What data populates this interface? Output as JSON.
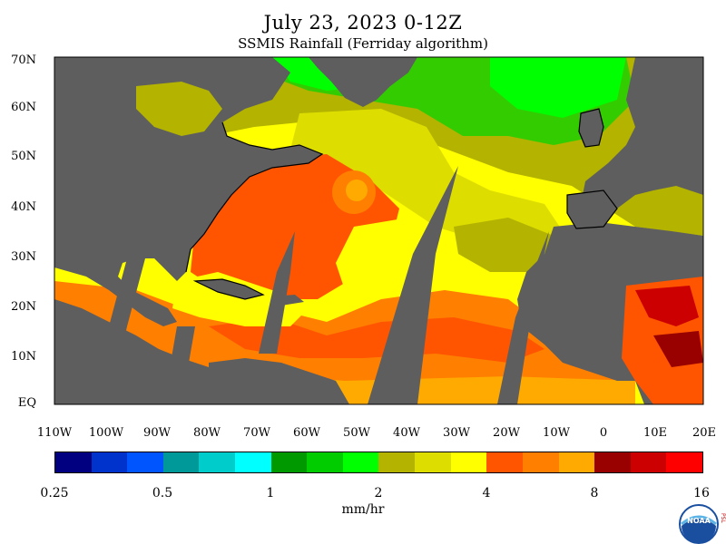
{
  "title": "July 23, 2023 0-12Z",
  "subtitle": "SSMIS Rainfall (Ferriday algorithm)",
  "lat_labels": [
    "70N",
    "60N",
    "50N",
    "40N",
    "30N",
    "20N",
    "10N",
    "EQ"
  ],
  "lon_labels": [
    "110W",
    "100W",
    "90W",
    "80W",
    "70W",
    "60W",
    "50W",
    "40W",
    "30W",
    "20W",
    "10W",
    "0",
    "10E",
    "20E"
  ],
  "colorbar": {
    "colors": [
      "#000080",
      "#0033cc",
      "#0055ff",
      "#009999",
      "#00cccc",
      "#00ffff",
      "#009900",
      "#00cc00",
      "#00ff00",
      "#b3b300",
      "#dddd00",
      "#ffff00",
      "#ff5500",
      "#ff7f00",
      "#ffaa00",
      "#990000",
      "#cc0000",
      "#ff0000"
    ],
    "tick_labels": [
      "0.25",
      "0.5",
      "1",
      "2",
      "4",
      "8",
      "16"
    ],
    "unit": "mm/hr"
  },
  "map_colors": {
    "land": "#5e5e5e",
    "coast": "#000000",
    "green": "#00ff00",
    "dark_green": "#33cc00",
    "olive": "#b3b300",
    "mid_yellow": "#dddd00",
    "yellow": "#ffff00",
    "orange_red": "#ff5500",
    "orange": "#ff7f00",
    "light_orange": "#ffaa00",
    "dark_red": "#990000",
    "red": "#cc0000"
  },
  "logo": {
    "text": "NOAA",
    "side_text": "PSL"
  }
}
